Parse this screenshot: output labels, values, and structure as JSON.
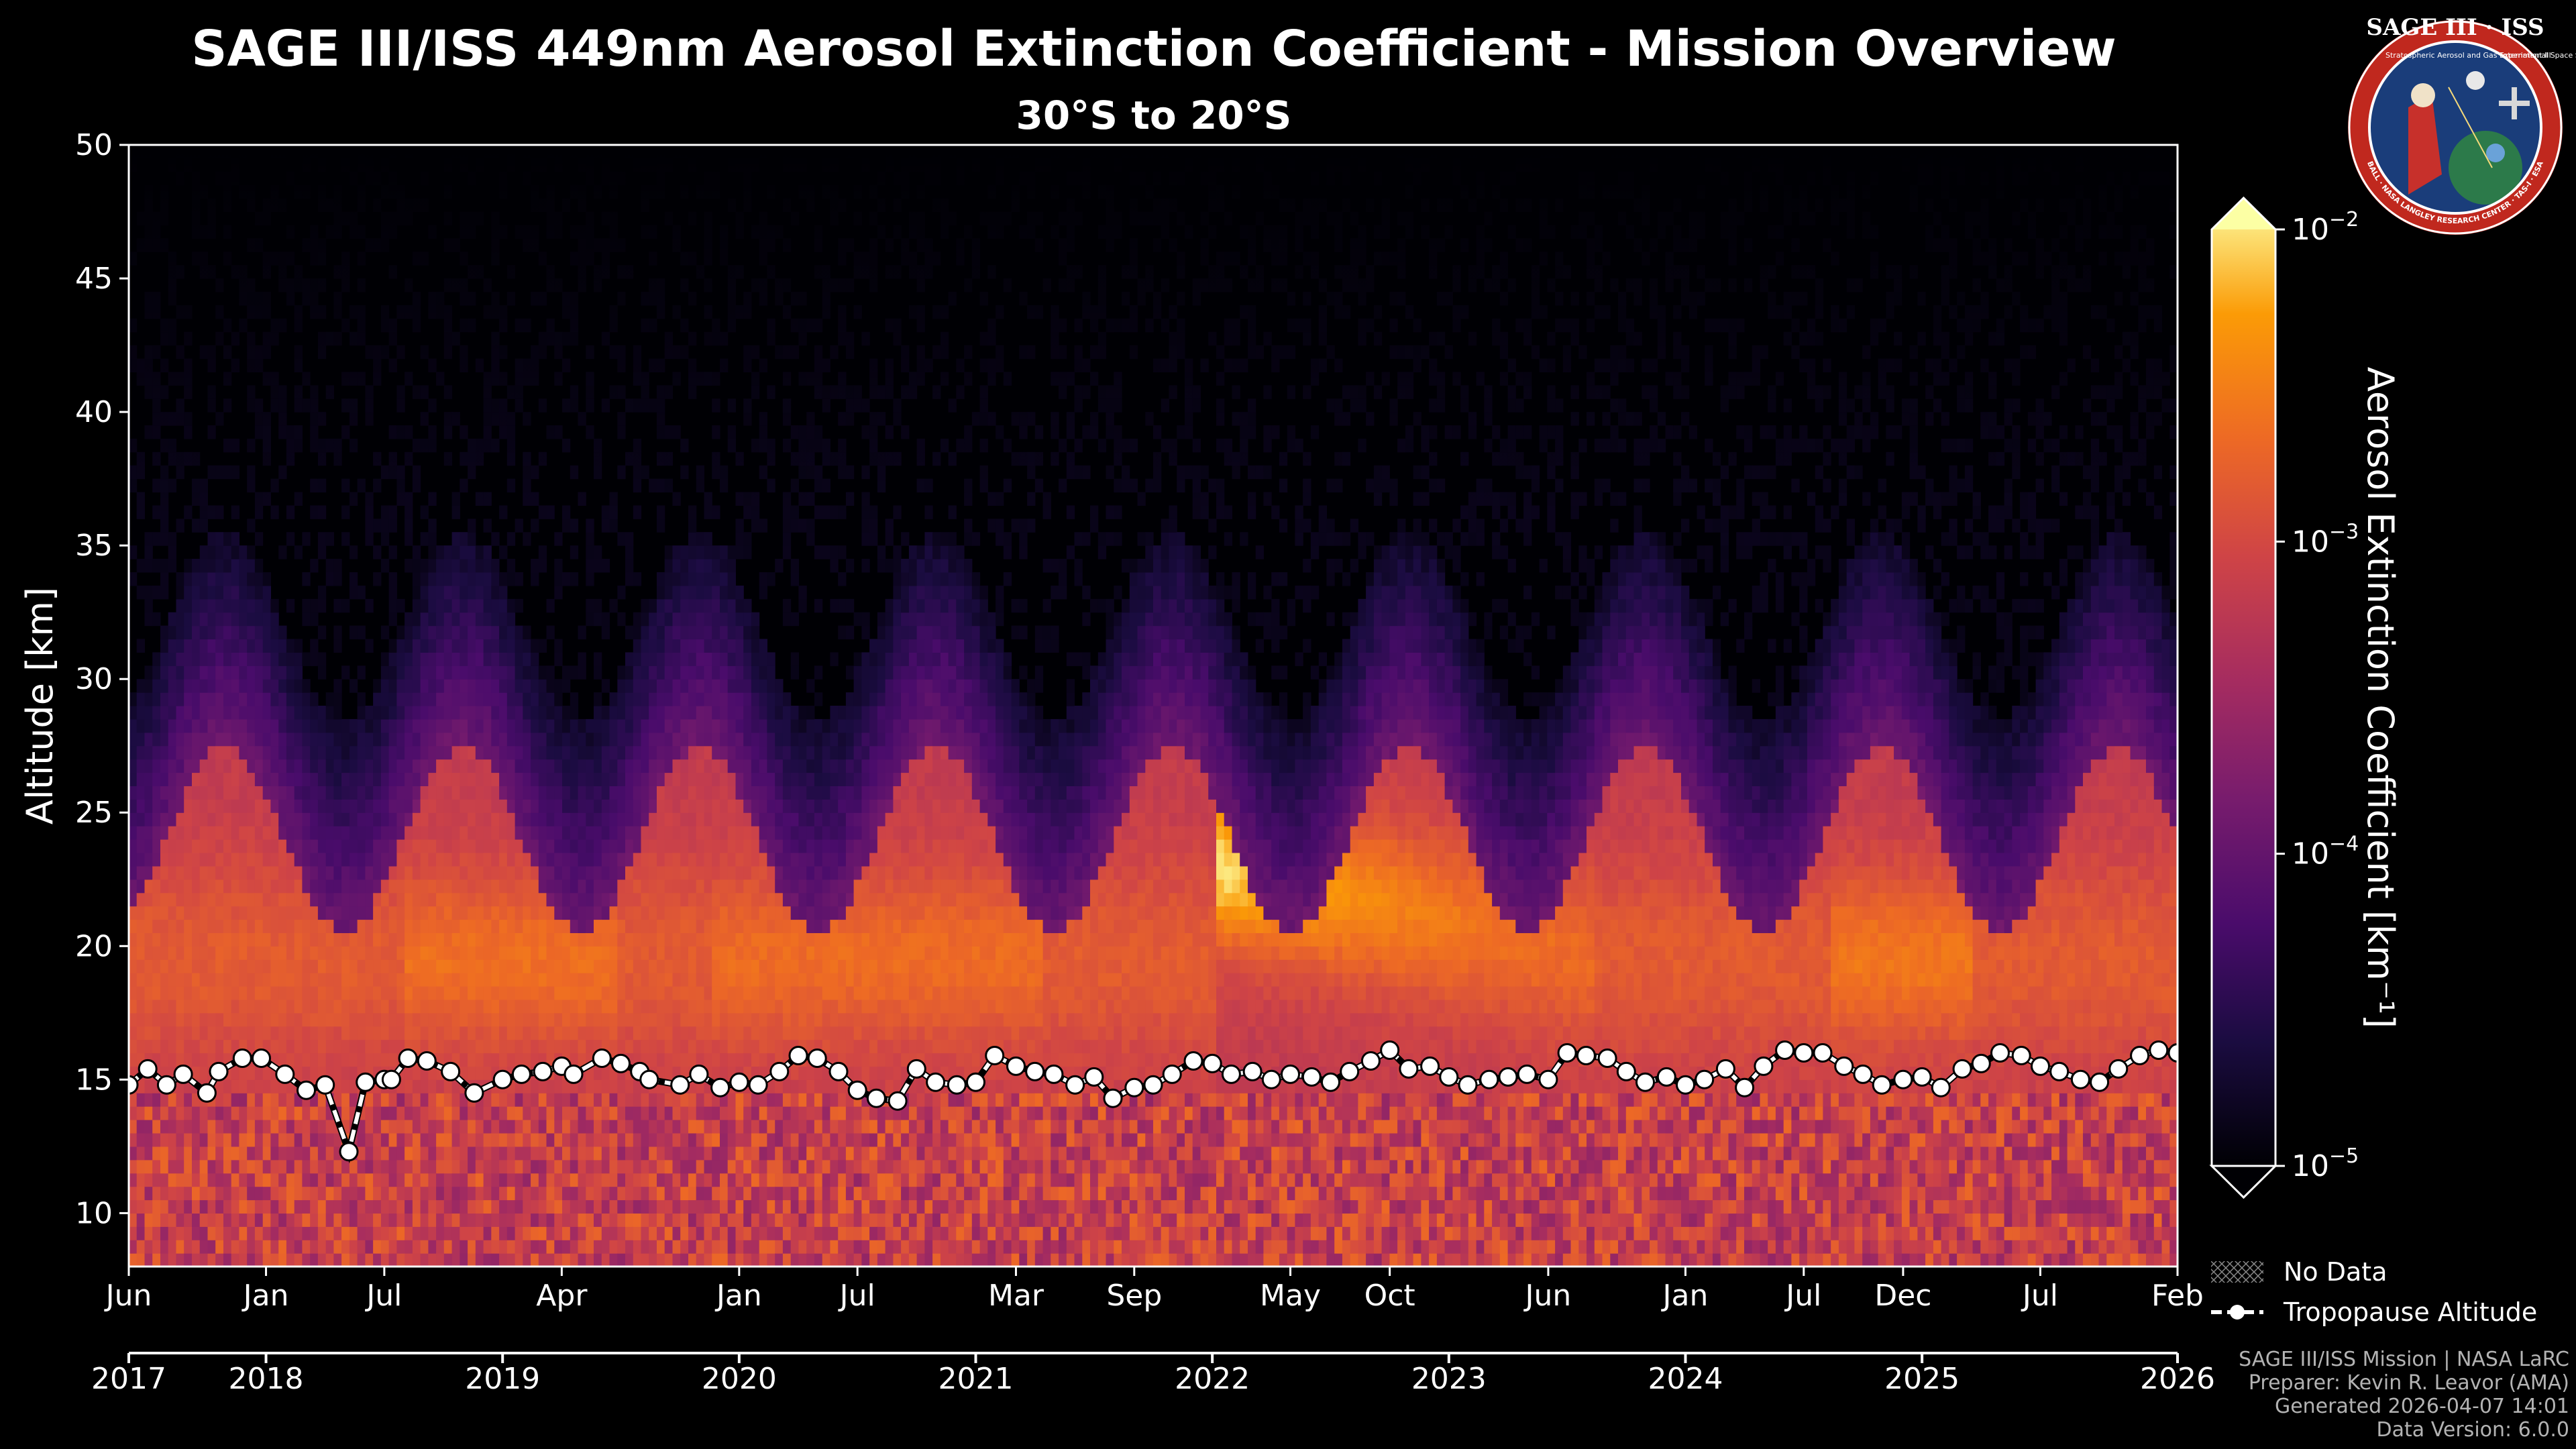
{
  "chart_data": {
    "type": "heatmap",
    "title": "SAGE III/ISS 449nm Aerosol Extinction Coefficient - Mission Overview",
    "subtitle": "30°S to 20°S",
    "ylabel": "Altitude [km]",
    "ylim": [
      8,
      50
    ],
    "yticks": [
      10,
      15,
      20,
      25,
      30,
      35,
      40,
      45,
      50
    ],
    "xlim": [
      "2017-06",
      "2026-02"
    ],
    "month_ticks": [
      {
        "label": "Jun",
        "t": 2017.42
      },
      {
        "label": "Jan",
        "t": 2018.0
      },
      {
        "label": "Jul",
        "t": 2018.5
      },
      {
        "label": "Apr",
        "t": 2019.25
      },
      {
        "label": "Jan",
        "t": 2020.0
      },
      {
        "label": "Jul",
        "t": 2020.5
      },
      {
        "label": "Mar",
        "t": 2021.17
      },
      {
        "label": "Sep",
        "t": 2021.67
      },
      {
        "label": "May",
        "t": 2022.33
      },
      {
        "label": "Oct",
        "t": 2022.75
      },
      {
        "label": "Jun",
        "t": 2023.42
      },
      {
        "label": "Jan",
        "t": 2024.0
      },
      {
        "label": "Jul",
        "t": 2024.5
      },
      {
        "label": "Dec",
        "t": 2024.92
      },
      {
        "label": "Jul",
        "t": 2025.5
      },
      {
        "label": "Feb",
        "t": 2026.08
      }
    ],
    "year_ticks": [
      {
        "label": "2017",
        "t": 2017.42
      },
      {
        "label": "2018",
        "t": 2018.0
      },
      {
        "label": "2019",
        "t": 2019.0
      },
      {
        "label": "2020",
        "t": 2020.0
      },
      {
        "label": "2021",
        "t": 2021.0
      },
      {
        "label": "2022",
        "t": 2022.0
      },
      {
        "label": "2023",
        "t": 2023.0
      },
      {
        "label": "2024",
        "t": 2024.0
      },
      {
        "label": "2025",
        "t": 2025.0
      },
      {
        "label": "2026",
        "t": 2026.08
      }
    ],
    "colorbar": {
      "label": "Aerosol Extinction Coefficient [km⁻¹]",
      "scale": "log",
      "range": [
        1e-05,
        0.01
      ],
      "colormap": "inferno",
      "extend": "both",
      "tick_base": "10",
      "tick_exponents": [
        "−5",
        "−4",
        "−3",
        "−2"
      ]
    },
    "legend": [
      {
        "label": "No Data",
        "style": "hatched"
      },
      {
        "label": "Tropopause Altitude",
        "style": "dashed-line-with-circles"
      }
    ],
    "tropopause": {
      "name": "Tropopause Altitude",
      "t": [
        2017.42,
        2017.5,
        2017.58,
        2017.65,
        2017.75,
        2017.8,
        2017.9,
        2017.98,
        2018.08,
        2018.17,
        2018.25,
        2018.35,
        2018.42,
        2018.5,
        2018.53,
        2018.6,
        2018.68,
        2018.78,
        2018.88,
        2019.0,
        2019.08,
        2019.17,
        2019.25,
        2019.3,
        2019.42,
        2019.5,
        2019.58,
        2019.62,
        2019.75,
        2019.83,
        2019.92,
        2020.0,
        2020.08,
        2020.17,
        2020.25,
        2020.33,
        2020.42,
        2020.5,
        2020.58,
        2020.67,
        2020.75,
        2020.83,
        2020.92,
        2021.0,
        2021.08,
        2021.17,
        2021.25,
        2021.33,
        2021.42,
        2021.5,
        2021.58,
        2021.67,
        2021.75,
        2021.83,
        2021.92,
        2022.0,
        2022.08,
        2022.17,
        2022.25,
        2022.33,
        2022.42,
        2022.5,
        2022.58,
        2022.67,
        2022.75,
        2022.83,
        2022.92,
        2023.0,
        2023.08,
        2023.17,
        2023.25,
        2023.33,
        2023.42,
        2023.5,
        2023.58,
        2023.67,
        2023.75,
        2023.83,
        2023.92,
        2024.0,
        2024.08,
        2024.17,
        2024.25,
        2024.33,
        2024.42,
        2024.5,
        2024.58,
        2024.67,
        2024.75,
        2024.83,
        2024.92,
        2025.0,
        2025.08,
        2025.17,
        2025.25,
        2025.33,
        2025.42,
        2025.5,
        2025.58,
        2025.67,
        2025.75,
        2025.83,
        2025.92,
        2026.0,
        2026.08
      ],
      "altitude_km": [
        14.8,
        15.4,
        14.8,
        15.2,
        14.5,
        15.3,
        15.8,
        15.8,
        15.2,
        14.6,
        14.8,
        12.3,
        14.9,
        15.0,
        15.0,
        15.8,
        15.7,
        15.3,
        14.5,
        15.0,
        15.2,
        15.3,
        15.5,
        15.2,
        15.8,
        15.6,
        15.3,
        15.0,
        14.8,
        15.2,
        14.7,
        14.9,
        14.8,
        15.3,
        15.9,
        15.8,
        15.3,
        14.6,
        14.3,
        14.2,
        15.4,
        14.9,
        14.8,
        14.9,
        15.9,
        15.5,
        15.3,
        15.2,
        14.8,
        15.1,
        14.3,
        14.7,
        14.8,
        15.2,
        15.7,
        15.6,
        15.2,
        15.3,
        15.0,
        15.2,
        15.1,
        14.9,
        15.3,
        15.7,
        16.1,
        15.4,
        15.5,
        15.1,
        14.8,
        15.0,
        15.1,
        15.2,
        15.0,
        16.0,
        15.9,
        15.8,
        15.3,
        14.9,
        15.1,
        14.8,
        15.0,
        15.4,
        14.7,
        15.5,
        16.1,
        16.0,
        16.0,
        15.5,
        15.2,
        14.8,
        15.0,
        15.1,
        14.7,
        15.4,
        15.6,
        16.0,
        15.9,
        15.5,
        15.3,
        15.0,
        14.9,
        15.4,
        15.9,
        16.1,
        16.0
      ]
    }
  },
  "footer": {
    "mission": "SAGE III/ISS Mission | NASA LaRC",
    "preparer": "Preparer: Kevin R. Leavor (AMA)",
    "generated": "Generated 2026-04-07 14:01",
    "version": "Data Version: 6.0.0"
  },
  "logo": {
    "top_text": "SAGE III · ISS",
    "left_small": "Stratospheric Aerosol and Gas Experiment III",
    "right_small": "International Space Station",
    "ring_text": "BALL · NASA LANGLEY RESEARCH CENTER · TAS-I · ESA"
  },
  "colors": {
    "background": "#000000",
    "tropopause_marker": "#ffffff",
    "logo_ring": "#c0281e",
    "logo_bg": "#1a3d7a"
  }
}
